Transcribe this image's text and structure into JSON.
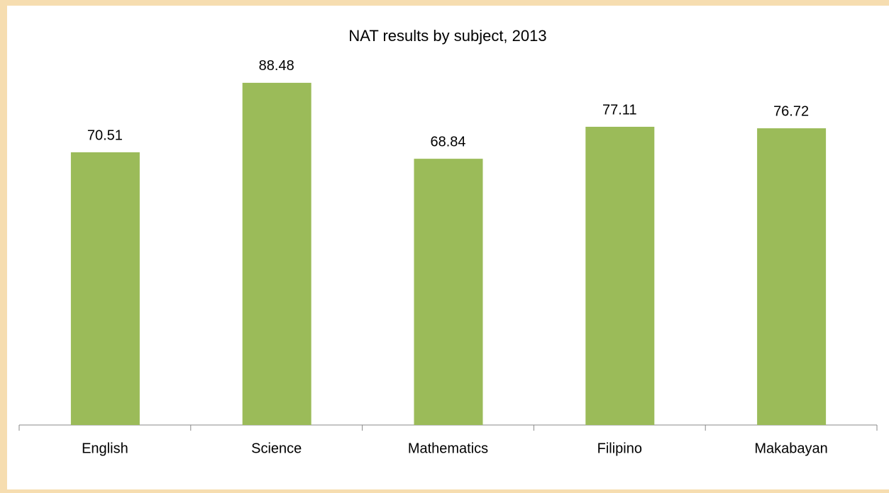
{
  "chart_data": {
    "type": "bar",
    "title": "NAT results by subject, 2013",
    "categories": [
      "English",
      "Science",
      "Mathematics",
      "Filipino",
      "Makabayan"
    ],
    "values": [
      70.51,
      88.48,
      68.84,
      77.11,
      76.72
    ],
    "color": "#9bbb59",
    "ylim": [
      0,
      100
    ]
  }
}
